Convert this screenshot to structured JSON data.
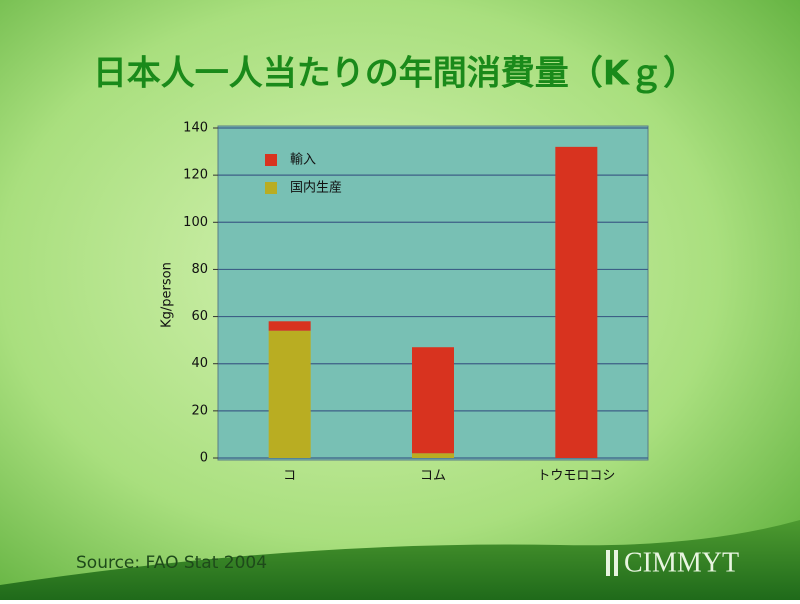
{
  "chart_data": {
    "type": "stacked_bar",
    "title": "日本人一人当たりの年間消費量（Kｇ）",
    "y_label": "Kg/person",
    "categories": [
      "コ",
      "コム",
      "トウモロコシ"
    ],
    "series": [
      {
        "name": "輸入",
        "color": "#d8331f",
        "values": [
          4,
          45,
          132
        ]
      },
      {
        "name": "国内生産",
        "color": "#b9ad22",
        "values": [
          54,
          2,
          0
        ]
      }
    ],
    "ylim": [
      0,
      140
    ],
    "yticks": [
      0,
      20,
      40,
      60,
      80,
      100,
      120,
      140
    ],
    "grid": true
  },
  "source": "Source: FAO Stat 2004",
  "logo": "CIMMYT"
}
